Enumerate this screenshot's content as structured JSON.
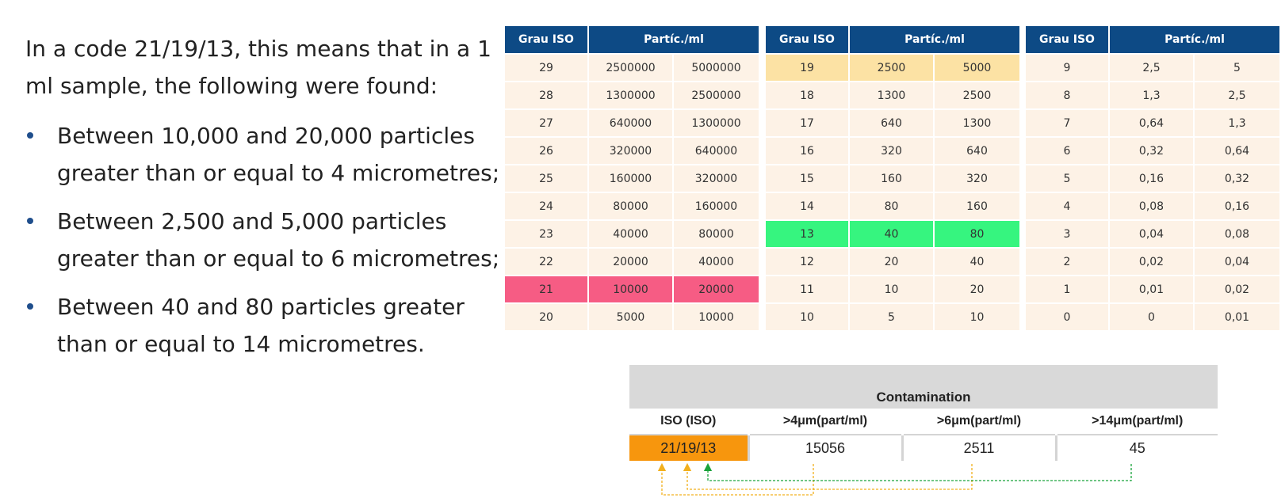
{
  "intro": "In a code 21/19/13, this means that in a 1 ml sample, the following were found:",
  "bullets": [
    "Between 10,000 and 20,000 particles greater than or equal to 4 micrometres;",
    "Between 2,500 and 5,000 particles greater than or equal to 6 micrometres;",
    "Between 40 and 80 particles greater than or equal to 14 micrometres."
  ],
  "colors": {
    "header_blue": "#0d4a85",
    "row_cream": "#fdf2e6",
    "highlight_pink": "#f65c84",
    "highlight_yellow": "#fce2a4",
    "highlight_green": "#36f57f",
    "iso_orange": "#f7960d",
    "panel_gray": "#d9d9d9",
    "arrow_yellow": "#f2b01e",
    "arrow_green": "#1aa33c",
    "bullet_blue": "#1f4e8c"
  },
  "iso_tables": [
    {
      "headers": [
        "Grau ISO",
        "Partíc./ml"
      ],
      "rows": [
        [
          "29",
          "2500000",
          "5000000"
        ],
        [
          "28",
          "1300000",
          "2500000"
        ],
        [
          "27",
          "640000",
          "1300000"
        ],
        [
          "26",
          "320000",
          "640000"
        ],
        [
          "25",
          "160000",
          "320000"
        ],
        [
          "24",
          "80000",
          "160000"
        ],
        [
          "23",
          "40000",
          "80000"
        ],
        [
          "22",
          "20000",
          "40000"
        ],
        [
          "21",
          "10000",
          "20000"
        ],
        [
          "20",
          "5000",
          "10000"
        ]
      ],
      "highlight_row": 8,
      "highlight_color": "highlight_pink"
    },
    {
      "headers": [
        "Grau ISO",
        "Partíc./ml"
      ],
      "rows": [
        [
          "19",
          "2500",
          "5000"
        ],
        [
          "18",
          "1300",
          "2500"
        ],
        [
          "17",
          "640",
          "1300"
        ],
        [
          "16",
          "320",
          "640"
        ],
        [
          "15",
          "160",
          "320"
        ],
        [
          "14",
          "80",
          "160"
        ],
        [
          "13",
          "40",
          "80"
        ],
        [
          "12",
          "20",
          "40"
        ],
        [
          "11",
          "10",
          "20"
        ],
        [
          "10",
          "5",
          "10"
        ]
      ],
      "highlight_rows": [
        0,
        6
      ],
      "highlight_colors": [
        "highlight_yellow",
        "highlight_green"
      ]
    },
    {
      "headers": [
        "Grau ISO",
        "Partíc./ml"
      ],
      "rows": [
        [
          "9",
          "2,5",
          "5"
        ],
        [
          "8",
          "1,3",
          "2,5"
        ],
        [
          "7",
          "0,64",
          "1,3"
        ],
        [
          "6",
          "0,32",
          "0,64"
        ],
        [
          "5",
          "0,16",
          "0,32"
        ],
        [
          "4",
          "0,08",
          "0,16"
        ],
        [
          "3",
          "0,04",
          "0,08"
        ],
        [
          "2",
          "0,02",
          "0,04"
        ],
        [
          "1",
          "0,01",
          "0,02"
        ],
        [
          "0",
          "0",
          "0,01"
        ]
      ]
    }
  ],
  "contamination": {
    "title": "Contamination",
    "headers": [
      "ISO (ISO)",
      ">4μm(part/ml)",
      ">6μm(part/ml)",
      ">14μm(part/ml)"
    ],
    "values": [
      "21/19/13",
      "15056",
      "2511",
      "45"
    ]
  }
}
